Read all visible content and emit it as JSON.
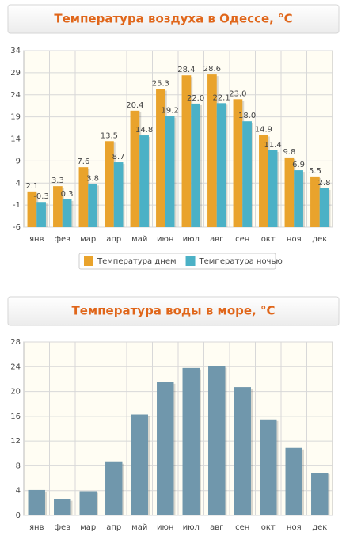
{
  "chart_data": [
    {
      "type": "bar",
      "title": "Температура воздуха в Одессе, °C",
      "categories": [
        "янв",
        "фев",
        "мар",
        "апр",
        "май",
        "июн",
        "июл",
        "авг",
        "сен",
        "окт",
        "ноя",
        "дек"
      ],
      "series": [
        {
          "name": "Температура днем",
          "color": "#e9a32c",
          "values": [
            2.1,
            3.3,
            7.6,
            13.5,
            20.4,
            25.3,
            28.4,
            28.6,
            23.0,
            14.9,
            9.8,
            5.5
          ],
          "value_labels": [
            "2.1",
            "3.3",
            "7.6",
            "13.5",
            "20.4",
            "25.3",
            "28.4",
            "28.6",
            "23.0",
            "14.9",
            "9.8",
            "5.5"
          ]
        },
        {
          "name": "Температура ночью",
          "color": "#4bb1c6",
          "values": [
            -0.3,
            0.3,
            3.8,
            8.7,
            14.8,
            19.2,
            22.0,
            22.1,
            18.0,
            11.4,
            6.9,
            2.8
          ],
          "value_labels": [
            "-0.3",
            "0.3",
            "3.8",
            "8.7",
            "14.8",
            "19.2",
            "22.0",
            "22.1",
            "18.0",
            "11.4",
            "6.9",
            "2.8"
          ]
        }
      ],
      "ylim": [
        -6,
        34
      ],
      "yticks": [
        -6,
        -1,
        4,
        9,
        14,
        19,
        24,
        29,
        34
      ],
      "grid": true,
      "legend": "bottom"
    },
    {
      "type": "bar",
      "title": "Температура воды в море, °C",
      "categories": [
        "янв",
        "фев",
        "мар",
        "апр",
        "май",
        "июн",
        "июл",
        "авг",
        "сен",
        "окт",
        "ноя",
        "дек"
      ],
      "series": [
        {
          "color": "#7097ac",
          "values": [
            4.1,
            2.6,
            3.9,
            8.6,
            16.3,
            21.5,
            23.8,
            24.1,
            20.7,
            15.5,
            10.9,
            6.9
          ]
        }
      ],
      "ylim": [
        0,
        28
      ],
      "yticks": [
        0,
        4,
        8,
        12,
        16,
        20,
        24,
        28
      ],
      "grid": true
    }
  ]
}
